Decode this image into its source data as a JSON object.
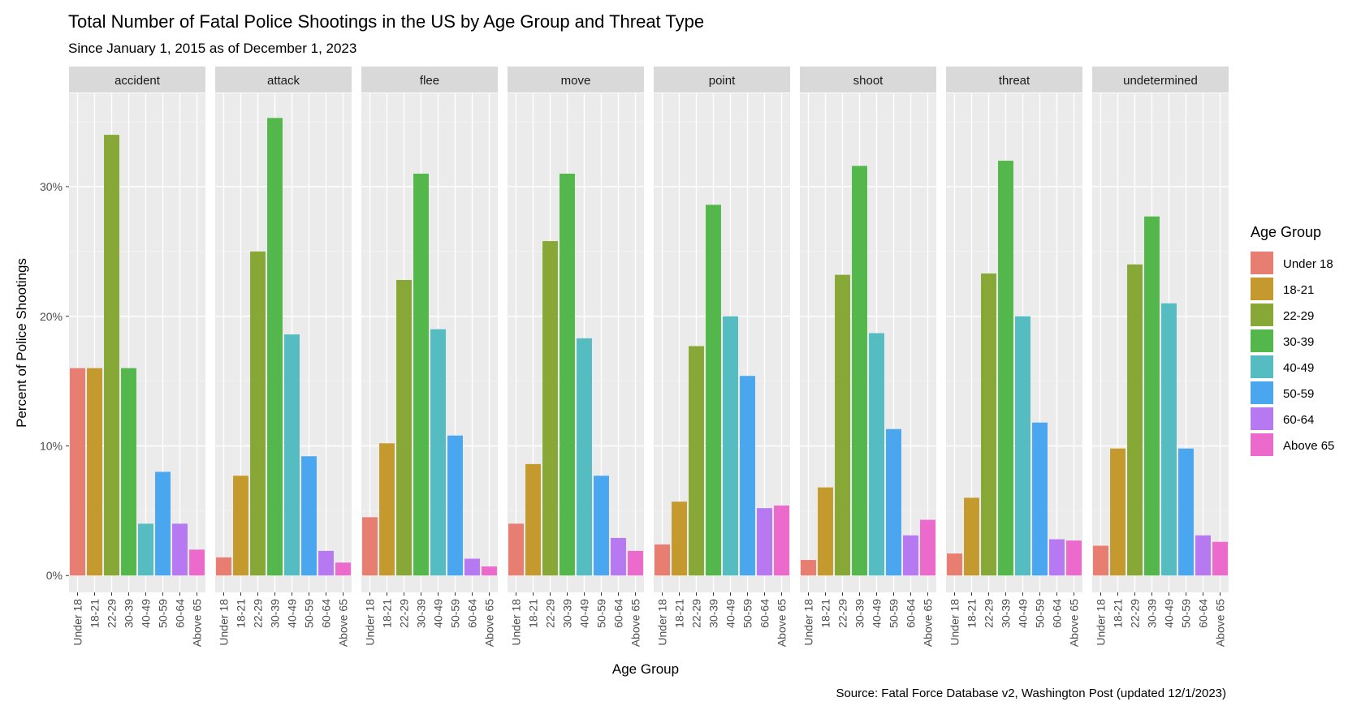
{
  "chart_data": {
    "type": "bar",
    "title": "Total Number of Fatal Police Shootings in the US by Age Group and Threat Type",
    "subtitle": "Since January 1, 2015 as of December 1, 2023",
    "caption": "Source: Fatal Force Database v2, Washington Post (updated 12/1/2023)",
    "xlabel": "Age Group",
    "ylabel": "Percent of Police Shootings",
    "ylim": [
      -1.3,
      37.2
    ],
    "yticks": [
      0,
      10,
      20,
      30
    ],
    "ytick_labels": [
      "0%",
      "10%",
      "20%",
      "30%"
    ],
    "grid": true,
    "legend": {
      "title": "Age Group",
      "position": "right",
      "entries": [
        "Under 18",
        "18-21",
        "22-29",
        "30-39",
        "40-49",
        "50-59",
        "60-64",
        "Above 65"
      ]
    },
    "categories": [
      "Under 18",
      "18-21",
      "22-29",
      "30-39",
      "40-49",
      "50-59",
      "60-64",
      "Above 65"
    ],
    "colors": [
      "#E87D72",
      "#C49A2F",
      "#87A836",
      "#53B74C",
      "#55BCC2",
      "#4BA6F0",
      "#B679F2",
      "#EB6ACB"
    ],
    "facets": [
      {
        "name": "accident",
        "values": [
          16.0,
          16.0,
          34.0,
          16.0,
          4.0,
          8.0,
          4.0,
          2.0
        ]
      },
      {
        "name": "attack",
        "values": [
          1.4,
          7.7,
          25.0,
          35.3,
          18.6,
          9.2,
          1.9,
          1.0
        ]
      },
      {
        "name": "flee",
        "values": [
          4.5,
          10.2,
          22.8,
          31.0,
          19.0,
          10.8,
          1.3,
          0.7
        ]
      },
      {
        "name": "move",
        "values": [
          4.0,
          8.6,
          25.8,
          31.0,
          18.3,
          7.7,
          2.9,
          1.9
        ]
      },
      {
        "name": "point",
        "values": [
          2.4,
          5.7,
          17.7,
          28.6,
          20.0,
          15.4,
          5.2,
          5.4
        ]
      },
      {
        "name": "shoot",
        "values": [
          1.2,
          6.8,
          23.2,
          31.6,
          18.7,
          11.3,
          3.1,
          4.3
        ]
      },
      {
        "name": "threat",
        "values": [
          1.7,
          6.0,
          23.3,
          32.0,
          20.0,
          11.8,
          2.8,
          2.7
        ]
      },
      {
        "name": "undetermined",
        "values": [
          2.3,
          9.8,
          24.0,
          27.7,
          21.0,
          9.8,
          3.1,
          2.6
        ]
      }
    ]
  }
}
